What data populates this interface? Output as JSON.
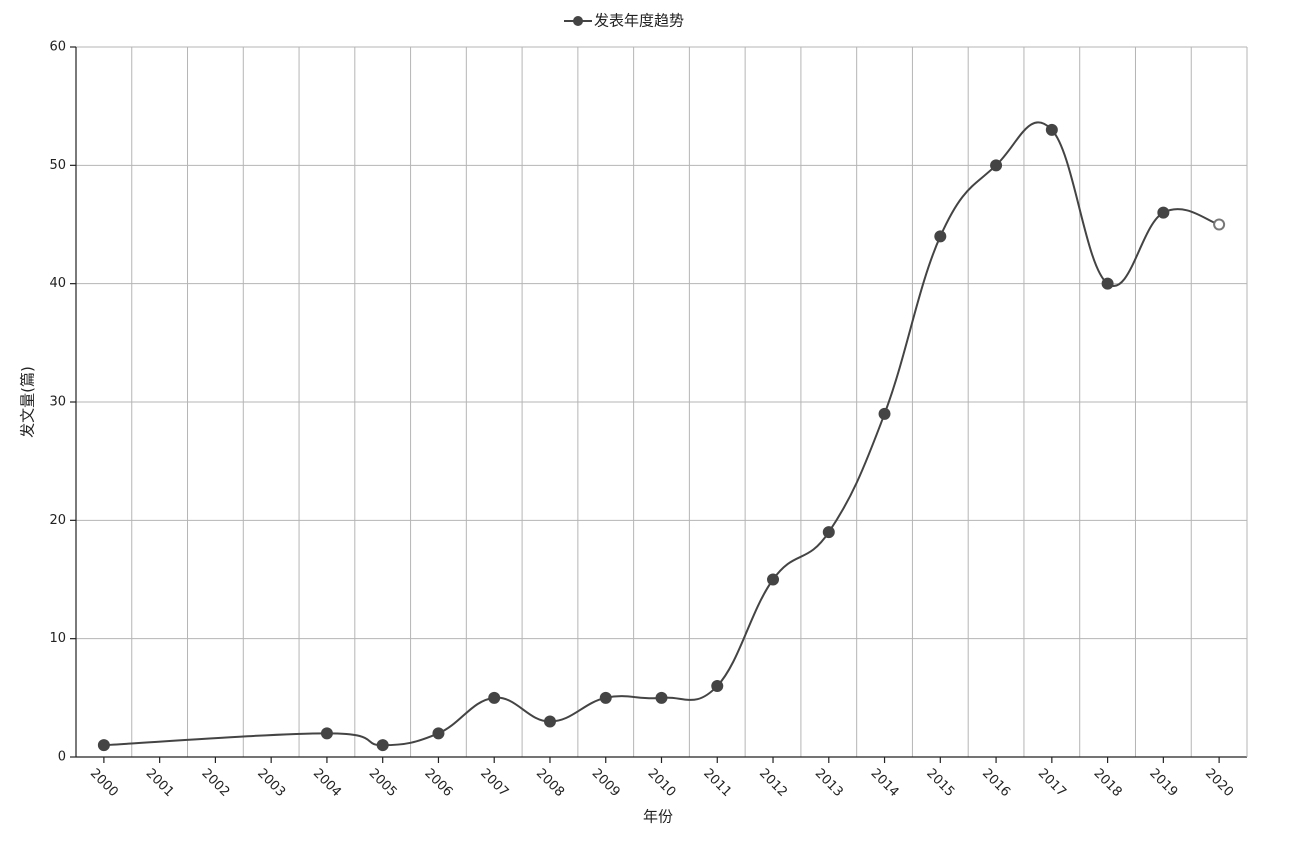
{
  "chart_data": {
    "type": "line",
    "y_label": "发文量(篇)",
    "x_label": "年份",
    "x": [
      2000,
      2004,
      2005,
      2006,
      2007,
      2008,
      2009,
      2010,
      2011,
      2012,
      2013,
      2014,
      2015,
      2016,
      2017,
      2018,
      2019,
      2020
    ],
    "series": [
      {
        "name": "发表年度趋势",
        "color": "#444444",
        "values": [
          1,
          2,
          1,
          2,
          5,
          3,
          5,
          5,
          6,
          15,
          19,
          29,
          44,
          50,
          53,
          40,
          46,
          45
        ]
      }
    ],
    "xlim": [
      1999.5,
      2020.5
    ],
    "xticks": [
      2000,
      2001,
      2002,
      2003,
      2004,
      2005,
      2006,
      2007,
      2008,
      2009,
      2010,
      2011,
      2012,
      2013,
      2014,
      2015,
      2016,
      2017,
      2018,
      2019,
      2020
    ],
    "ylim": [
      0,
      60
    ],
    "yticks": [
      0,
      10,
      20,
      30,
      40,
      50,
      60
    ],
    "grid": true,
    "smooth": true,
    "legend": "top"
  }
}
